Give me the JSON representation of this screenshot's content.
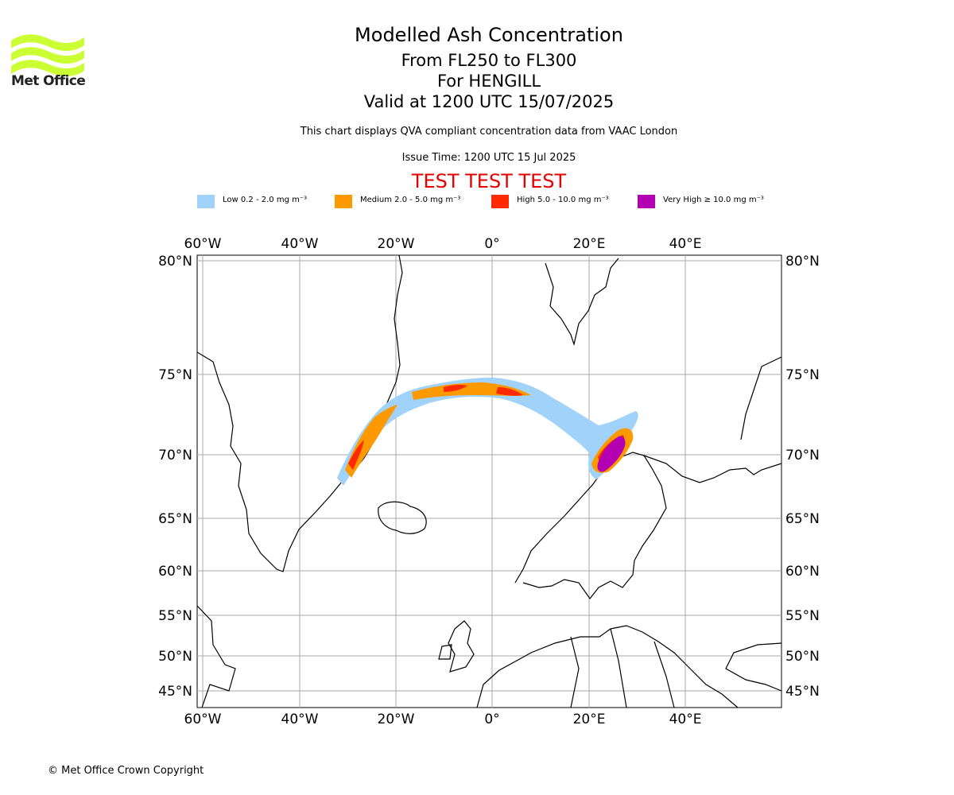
{
  "header": {
    "title": "Modelled Ash Concentration",
    "subtitle_levels": "From FL250 to FL300",
    "subtitle_volcano": "For HENGILL",
    "subtitle_valid": "Valid at 1200 UTC 15/07/2025",
    "note": "This chart displays QVA compliant concentration data from VAAC London",
    "issue_time": "Issue Time: 1200 UTC 15 Jul 2025",
    "test_banner": "TEST TEST TEST"
  },
  "logo": {
    "text": "Met Office",
    "color": "#ccff33"
  },
  "legend": [
    {
      "label": "Low 0.2 - 2.0 mg m⁻³",
      "color": "#a0d2fa"
    },
    {
      "label": "Medium 2.0 - 5.0 mg m⁻³",
      "color": "#ff9900"
    },
    {
      "label": "High 5.0 - 10.0 mg m⁻³",
      "color": "#ff2a00"
    },
    {
      "label": "Very High ≥ 10.0 mg m⁻³",
      "color": "#b300b3"
    }
  ],
  "map": {
    "lon_ticks": [
      "60°W",
      "40°W",
      "20°W",
      "0°",
      "20°E",
      "40°E"
    ],
    "lat_ticks": [
      "80°N",
      "75°N",
      "70°N",
      "65°N",
      "60°N",
      "55°N",
      "50°N",
      "45°N"
    ],
    "grid": true,
    "gridline_color": "#aaaaaa"
  },
  "footer": {
    "copyright": "© Met Office Crown Copyright"
  }
}
